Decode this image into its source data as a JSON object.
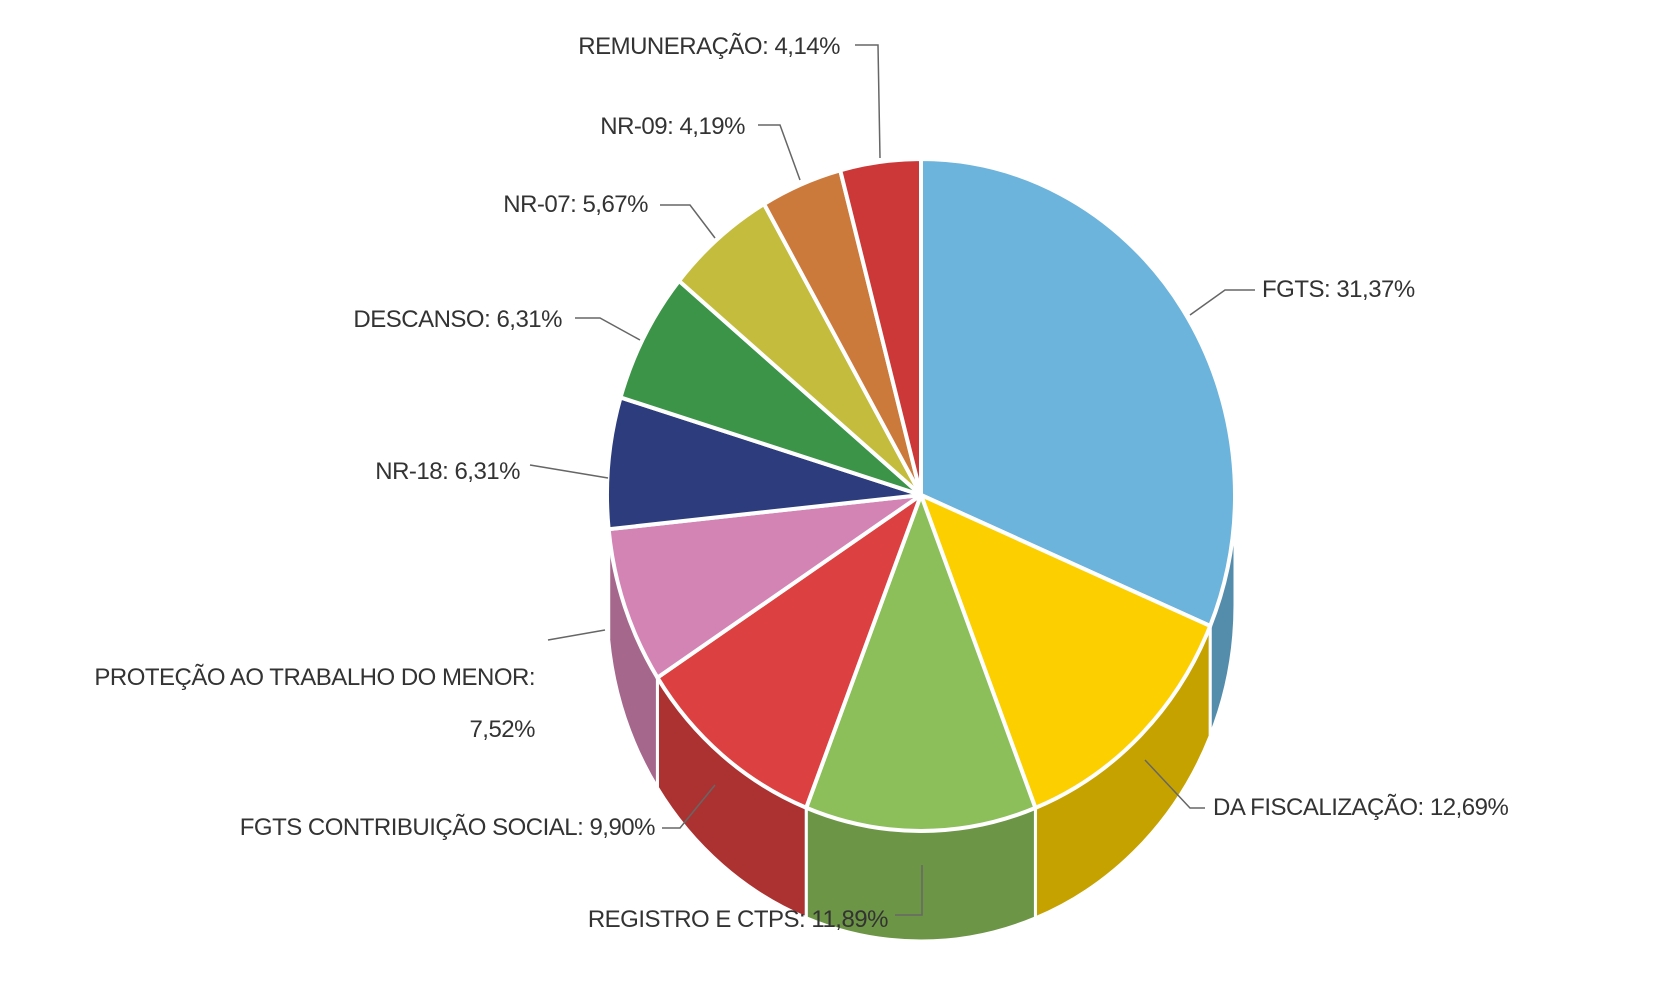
{
  "chart_data": {
    "type": "pie",
    "categories": [
      "FGTS",
      "DA FISCALIZAÇÃO",
      "REGISTRO E CTPS",
      "FGTS CONTRIBUIÇÃO SOCIAL",
      "PROTEÇÃO AO TRABALHO DO MENOR",
      "NR-18",
      "DESCANSO",
      "NR-07",
      "NR-09",
      "REMUNERAÇÃO"
    ],
    "values": [
      31.37,
      12.69,
      11.89,
      9.9,
      7.52,
      6.31,
      6.31,
      5.67,
      4.19,
      4.14
    ],
    "value_labels": [
      "FGTS: 31,37%",
      "DA FISCALIZAÇÃO: 12,69%",
      "REGISTRO E CTPS: 11,89%",
      "FGTS CONTRIBUIÇÃO SOCIAL: 9,90%",
      "PROTEÇÃO AO TRABALHO DO MENOR: 7,52%",
      "NR-18: 6,31%",
      "DESCANSO: 6,31%",
      "NR-07: 5,67%",
      "NR-09: 4,19%",
      "REMUNERAÇÃO: 4,14%"
    ],
    "colors": [
      "#6cb4dc",
      "#fcd000",
      "#8cbf5a",
      "#dc4040",
      "#d484b4",
      "#2c3c7c",
      "#3c9448",
      "#c4bc3c",
      "#cc7a3c",
      "#cc3838"
    ]
  }
}
